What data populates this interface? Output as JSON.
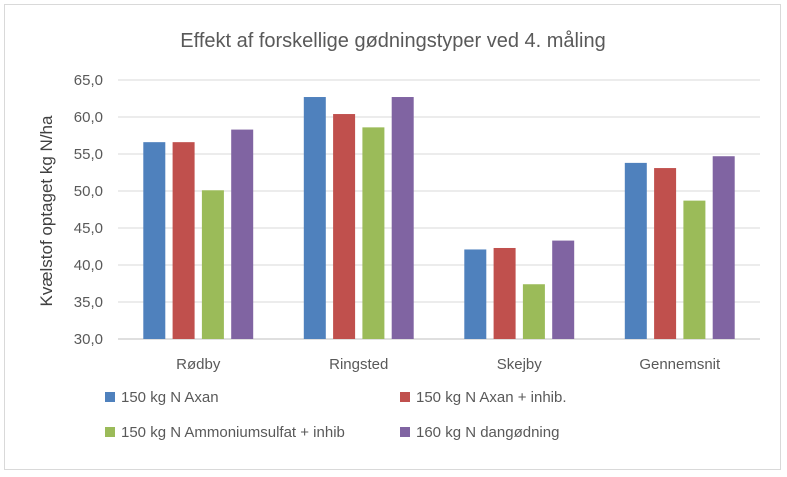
{
  "chart_data": {
    "type": "bar",
    "title": "Effekt af forskellige gødningstyper ved 4. måling",
    "xlabel": "",
    "ylabel": "Kvælstof optaget kg N/ha",
    "ylim": [
      30,
      65
    ],
    "yticks": [
      "30,0",
      "35,0",
      "40,0",
      "45,0",
      "50,0",
      "55,0",
      "60,0",
      "65,0"
    ],
    "categories": [
      "Rødby",
      "Ringsted",
      "Skejby",
      "Gennemsnit"
    ],
    "grid": true,
    "legend_position": "bottom",
    "series": [
      {
        "name": "150 kg N Axan",
        "color": "#4f81bd",
        "values": [
          56.6,
          62.7,
          42.1,
          53.8
        ]
      },
      {
        "name": "150 kg N Axan + inhib.",
        "color": "#c0504d",
        "values": [
          56.6,
          60.4,
          42.3,
          53.1
        ]
      },
      {
        "name": "150 kg N Ammoniumsulfat + inhib",
        "color": "#9bbb59",
        "values": [
          50.1,
          58.6,
          37.4,
          48.7
        ]
      },
      {
        "name": "160 kg N dangødning",
        "color": "#8064a2",
        "values": [
          58.3,
          62.7,
          43.3,
          54.7
        ]
      }
    ]
  }
}
